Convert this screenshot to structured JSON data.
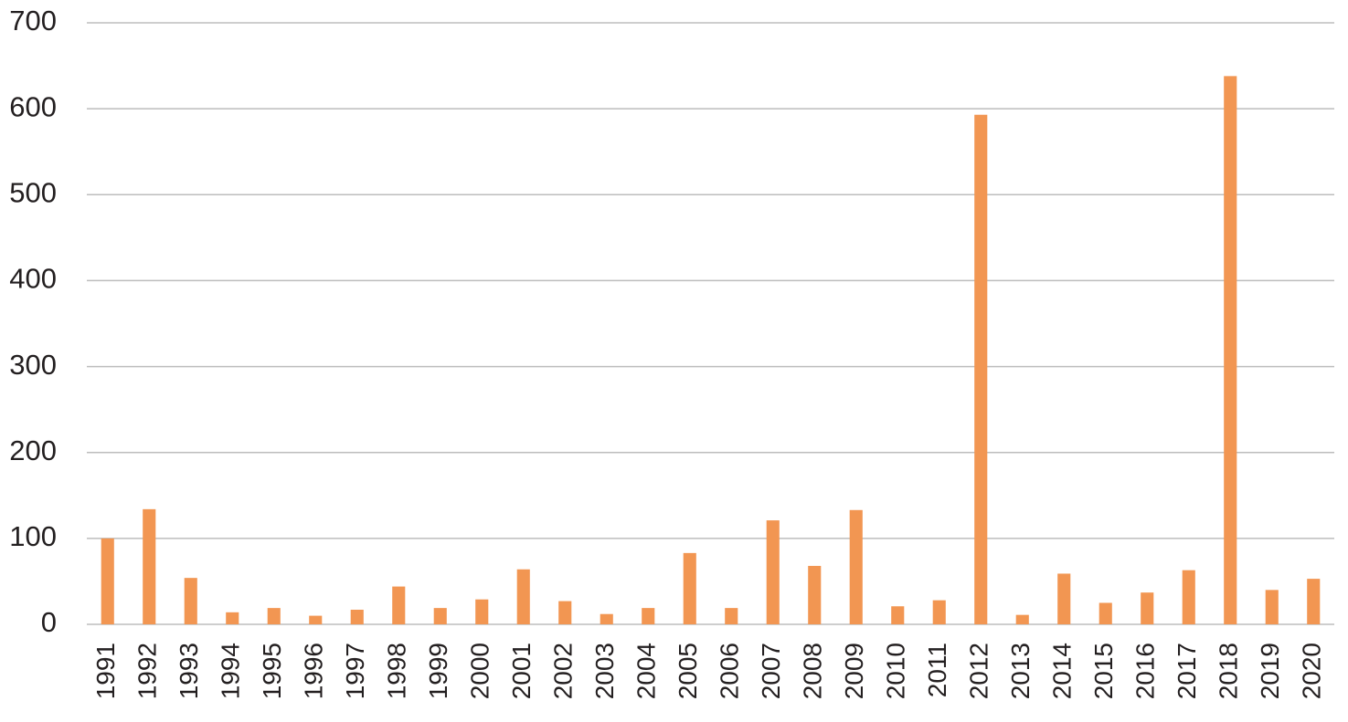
{
  "chart_data": {
    "type": "bar",
    "categories": [
      "1991",
      "1992",
      "1993",
      "1994",
      "1995",
      "1996",
      "1997",
      "1998",
      "1999",
      "2000",
      "2001",
      "2002",
      "2003",
      "2004",
      "2005",
      "2006",
      "2007",
      "2008",
      "2009",
      "2010",
      "2011",
      "2012",
      "2013",
      "2014",
      "2015",
      "2016",
      "2017",
      "2018",
      "2019",
      "2020"
    ],
    "values": [
      100,
      134,
      54,
      14,
      19,
      10,
      17,
      44,
      19,
      29,
      64,
      27,
      12,
      19,
      83,
      19,
      121,
      68,
      133,
      21,
      28,
      593,
      11,
      59,
      25,
      37,
      63,
      638,
      40,
      53
    ],
    "color": "#f29652",
    "ylim": [
      0,
      700
    ],
    "yticks": [
      0,
      100,
      200,
      300,
      400,
      500,
      600,
      700
    ],
    "grid": true
  }
}
